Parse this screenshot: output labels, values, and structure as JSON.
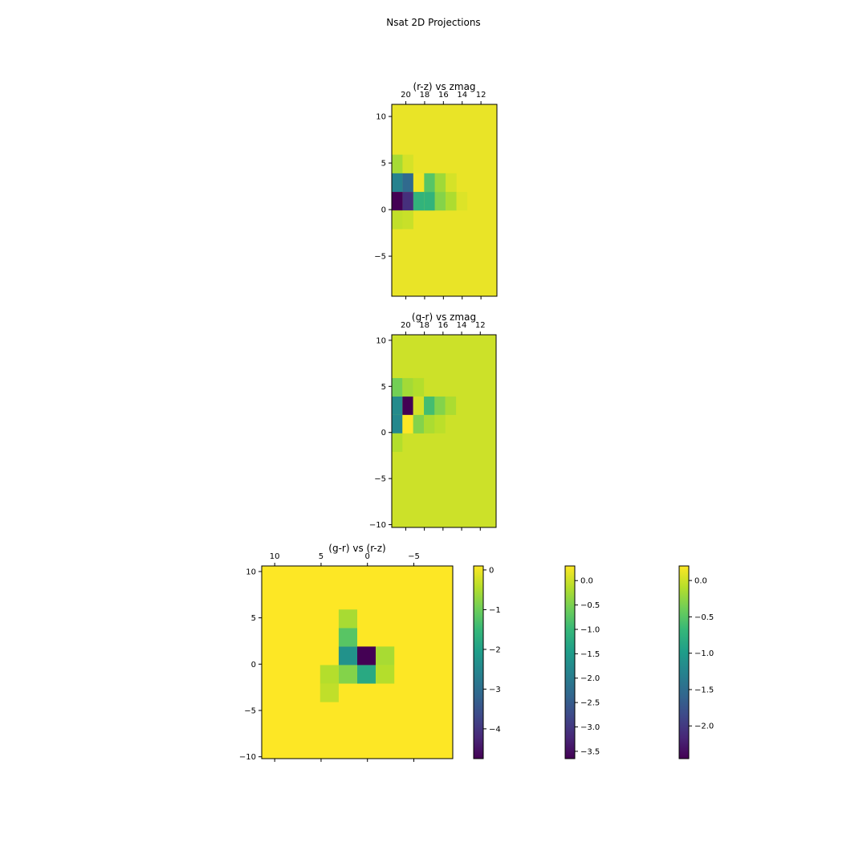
{
  "title": "Nsat 2D Projections",
  "chart_data": [
    {
      "type": "heatmap",
      "title": "(r-z) vs zmag",
      "xlabel": "",
      "ylabel": "",
      "x_axis_position": "top",
      "xlim": [
        21.5,
        10.3
      ],
      "ylim": [
        -9.3,
        11.3
      ],
      "x_ticks": [
        20,
        18,
        16,
        14,
        12
      ],
      "x_tick_labels": [
        "20",
        "18",
        "16",
        "14",
        "12"
      ],
      "y_ticks": [
        -5,
        0,
        5,
        10
      ],
      "y_tick_labels": [
        "−5",
        "0",
        "5",
        "10"
      ],
      "cells": [
        {
          "x": [
            21.5,
            20.35
          ],
          "y": [
            3.9,
            5.9
          ],
          "value": -0.55
        },
        {
          "x": [
            20.35,
            19.2
          ],
          "y": [
            3.9,
            5.9
          ],
          "value": -0.2
        },
        {
          "x": [
            21.5,
            20.35
          ],
          "y": [
            1.9,
            3.9
          ],
          "value": -2.6
        },
        {
          "x": [
            20.35,
            19.2
          ],
          "y": [
            1.9,
            3.9
          ],
          "value": -3.1
        },
        {
          "x": [
            19.2,
            18.05
          ],
          "y": [
            1.9,
            3.9
          ],
          "value": 0.0
        },
        {
          "x": [
            18.05,
            16.9
          ],
          "y": [
            1.9,
            3.9
          ],
          "value": -1.2
        },
        {
          "x": [
            16.9,
            15.75
          ],
          "y": [
            1.9,
            3.9
          ],
          "value": -0.6
        },
        {
          "x": [
            15.75,
            14.6
          ],
          "y": [
            1.9,
            3.9
          ],
          "value": -0.2
        },
        {
          "x": [
            21.5,
            20.35
          ],
          "y": [
            -0.1,
            1.9
          ],
          "value": -4.75
        },
        {
          "x": [
            20.35,
            19.2
          ],
          "y": [
            -0.1,
            1.9
          ],
          "value": -4.1
        },
        {
          "x": [
            19.2,
            18.05
          ],
          "y": [
            -0.1,
            1.9
          ],
          "value": -1.6
        },
        {
          "x": [
            18.05,
            16.9
          ],
          "y": [
            -0.1,
            1.9
          ],
          "value": -1.6
        },
        {
          "x": [
            16.9,
            15.75
          ],
          "y": [
            -0.1,
            1.9
          ],
          "value": -0.8
        },
        {
          "x": [
            15.75,
            14.6
          ],
          "y": [
            -0.1,
            1.9
          ],
          "value": -0.5
        },
        {
          "x": [
            14.6,
            13.45
          ],
          "y": [
            -0.1,
            1.9
          ],
          "value": -0.15
        },
        {
          "x": [
            21.5,
            20.35
          ],
          "y": [
            -2.1,
            -0.1
          ],
          "value": -0.35
        },
        {
          "x": [
            20.35,
            19.2
          ],
          "y": [
            -2.1,
            -0.1
          ],
          "value": -0.3
        }
      ],
      "background_value": -0.05,
      "vmin": -4.75,
      "vmax": 0.1
    },
    {
      "type": "heatmap",
      "title": "(g-r) vs zmag",
      "xlabel": "",
      "ylabel": "",
      "x_axis_position": "top",
      "xlim": [
        21.5,
        10.3
      ],
      "ylim": [
        -10.3,
        10.6
      ],
      "x_ticks": [
        20,
        18,
        16,
        14,
        12
      ],
      "x_tick_labels": [
        "20",
        "18",
        "16",
        "14",
        "12"
      ],
      "y_ticks": [
        -10,
        -5,
        0,
        5,
        10
      ],
      "y_tick_labels": [
        "−10",
        "−5",
        "0",
        "5",
        "10"
      ],
      "cells": [
        {
          "x": [
            21.5,
            20.35
          ],
          "y": [
            3.9,
            5.9
          ],
          "value": -0.55
        },
        {
          "x": [
            20.35,
            19.2
          ],
          "y": [
            3.9,
            5.9
          ],
          "value": -0.25
        },
        {
          "x": [
            19.2,
            18.05
          ],
          "y": [
            3.9,
            5.9
          ],
          "value": -0.15
        },
        {
          "x": [
            21.5,
            20.35
          ],
          "y": [
            1.9,
            3.9
          ],
          "value": -1.75
        },
        {
          "x": [
            20.35,
            19.2
          ],
          "y": [
            1.9,
            3.9
          ],
          "value": -3.65
        },
        {
          "x": [
            19.2,
            18.05
          ],
          "y": [
            1.9,
            3.9
          ],
          "value": 0.05
        },
        {
          "x": [
            18.05,
            16.9
          ],
          "y": [
            1.9,
            3.9
          ],
          "value": -0.9
        },
        {
          "x": [
            16.9,
            15.75
          ],
          "y": [
            1.9,
            3.9
          ],
          "value": -0.45
        },
        {
          "x": [
            15.75,
            14.6
          ],
          "y": [
            1.9,
            3.9
          ],
          "value": -0.2
        },
        {
          "x": [
            21.5,
            20.35
          ],
          "y": [
            -0.1,
            1.9
          ],
          "value": -1.8
        },
        {
          "x": [
            20.35,
            19.2
          ],
          "y": [
            -0.1,
            1.9
          ],
          "value": 0.3
        },
        {
          "x": [
            19.2,
            18.05
          ],
          "y": [
            -0.1,
            1.9
          ],
          "value": -0.45
        },
        {
          "x": [
            18.05,
            16.9
          ],
          "y": [
            -0.1,
            1.9
          ],
          "value": -0.2
        },
        {
          "x": [
            16.9,
            15.75
          ],
          "y": [
            -0.1,
            1.9
          ],
          "value": -0.1
        },
        {
          "x": [
            21.5,
            20.35
          ],
          "y": [
            -2.1,
            -0.1
          ],
          "value": -0.15
        }
      ],
      "background_value": 0.0,
      "vmin": -3.65,
      "vmax": 0.3
    },
    {
      "type": "heatmap",
      "title": "(g-r) vs (r-z)",
      "xlabel": "",
      "ylabel": "",
      "x_axis_position": "top",
      "xlim": [
        11.4,
        -9.2
      ],
      "ylim": [
        -10.2,
        10.6
      ],
      "x_ticks": [
        10,
        5,
        0,
        -5
      ],
      "x_tick_labels": [
        "10",
        "5",
        "0",
        "−5"
      ],
      "y_ticks": [
        -10,
        -5,
        0,
        5,
        10
      ],
      "y_tick_labels": [
        "−10",
        "−5",
        "0",
        "5",
        "10"
      ],
      "cells": [
        {
          "x": [
            3.1,
            1.1
          ],
          "y": [
            3.9,
            5.9
          ],
          "value": -0.15
        },
        {
          "x": [
            3.1,
            1.1
          ],
          "y": [
            1.9,
            3.9
          ],
          "value": -0.5
        },
        {
          "x": [
            3.1,
            1.1
          ],
          "y": [
            -0.1,
            1.9
          ],
          "value": -1.1
        },
        {
          "x": [
            1.1,
            -0.9
          ],
          "y": [
            -0.1,
            1.9
          ],
          "value": -2.45
        },
        {
          "x": [
            -0.9,
            -2.9
          ],
          "y": [
            -0.1,
            1.9
          ],
          "value": -0.15
        },
        {
          "x": [
            5.1,
            3.1
          ],
          "y": [
            -2.1,
            -0.1
          ],
          "value": -0.1
        },
        {
          "x": [
            3.1,
            1.1
          ],
          "y": [
            -2.1,
            -0.1
          ],
          "value": -0.3
        },
        {
          "x": [
            1.1,
            -0.9
          ],
          "y": [
            -2.1,
            -0.1
          ],
          "value": -0.85
        },
        {
          "x": [
            -0.9,
            -2.9
          ],
          "y": [
            -2.1,
            -0.1
          ],
          "value": -0.1
        },
        {
          "x": [
            5.1,
            3.1
          ],
          "y": [
            -4.1,
            -2.1
          ],
          "value": -0.05
        }
      ],
      "background_value": 0.2,
      "vmin": -2.45,
      "vmax": 0.2
    }
  ],
  "colorbars": [
    {
      "vmin": -4.75,
      "vmax": 0.1,
      "ticks": [
        0,
        -1,
        -2,
        -3,
        -4
      ],
      "tick_labels": [
        "0",
        "−1",
        "−2",
        "−3",
        "−4"
      ]
    },
    {
      "vmin": -3.65,
      "vmax": 0.3,
      "ticks": [
        0,
        -0.5,
        -1,
        -1.5,
        -2,
        -2.5,
        -3,
        -3.5
      ],
      "tick_labels": [
        "0.0",
        "−0.5",
        "−1.0",
        "−1.5",
        "−2.0",
        "−2.5",
        "−3.0",
        "−3.5"
      ]
    },
    {
      "vmin": -2.45,
      "vmax": 0.2,
      "ticks": [
        0,
        -0.5,
        -1,
        -1.5,
        -2
      ],
      "tick_labels": [
        "0.0",
        "−0.5",
        "−1.0",
        "−1.5",
        "−2.0"
      ]
    }
  ],
  "colors": {
    "viridis": [
      "#440154",
      "#482878",
      "#3e4989",
      "#31688e",
      "#26828e",
      "#1f9e89",
      "#35b779",
      "#6ece58",
      "#b5de2b",
      "#fde725"
    ]
  }
}
